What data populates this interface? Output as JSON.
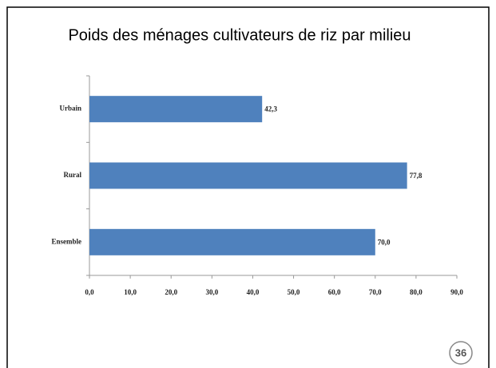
{
  "chart_data": {
    "type": "barh",
    "title": "Poids des ménages cultivateurs de riz par milieu",
    "categories": [
      "Urbain",
      "Rural",
      "Ensemble"
    ],
    "values": [
      42.3,
      77.8,
      70.0
    ],
    "value_labels": [
      "42,3",
      "77,8",
      "70,0"
    ],
    "color": "#4f81bd",
    "xlim": [
      0,
      90
    ],
    "xticks": [
      {
        "value": 0,
        "label": "0,0"
      },
      {
        "value": 10,
        "label": "10,0"
      },
      {
        "value": 20,
        "label": "20,0"
      },
      {
        "value": 30,
        "label": "30,0"
      },
      {
        "value": 40,
        "label": "40,0"
      },
      {
        "value": 50,
        "label": "50,0"
      },
      {
        "value": 60,
        "label": "60,0"
      },
      {
        "value": 70,
        "label": "70,0"
      },
      {
        "value": 80,
        "label": "80,0"
      },
      {
        "value": 90,
        "label": "90,0"
      }
    ],
    "grid": false
  },
  "page_number": "36"
}
